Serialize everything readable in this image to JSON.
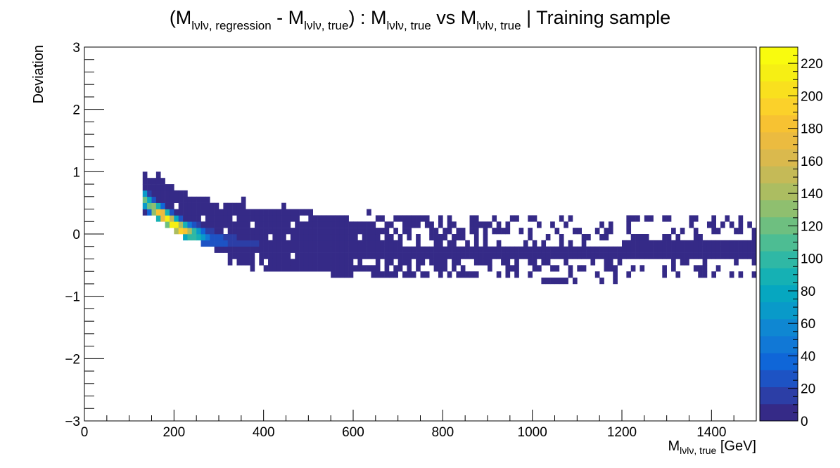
{
  "chart_data": {
    "type": "heatmap",
    "title": {
      "open": "(M",
      "sub1": "lνlν, regression",
      "mid1": " - M",
      "sub2": "lνlν, true",
      "mid2": ") : M",
      "sub3": "lνlν, true",
      "mid3": " vs M",
      "sub4": "lνlν, true",
      "end": " | Training sample"
    },
    "xlabel": {
      "main": "M",
      "sub": "lνlν, true",
      "unit": " [GeV]"
    },
    "ylabel": "Deviation",
    "xlim": [
      0,
      1500
    ],
    "ylim": [
      -3,
      3
    ],
    "x_ticks": [
      0,
      200,
      400,
      600,
      800,
      1000,
      1200,
      1400
    ],
    "x_tick_labels": [
      "0",
      "200",
      "400",
      "600",
      "800",
      "1000",
      "1200",
      "1400"
    ],
    "y_ticks": [
      -3,
      -2,
      -1,
      0,
      1,
      2,
      3
    ],
    "y_tick_labels": [
      "−3",
      "−2",
      "−1",
      "0",
      "1",
      "2",
      "3"
    ],
    "colorbar": {
      "range": [
        0,
        230
      ],
      "ticks": [
        0,
        20,
        40,
        60,
        80,
        100,
        120,
        140,
        160,
        180,
        200,
        220
      ],
      "tick_labels": [
        "0",
        "20",
        "40",
        "60",
        "80",
        "100",
        "120",
        "140",
        "160",
        "180",
        "200",
        "220"
      ],
      "palette": [
        "#352a87",
        "#2c3ea6",
        "#1d53c4",
        "#0f66d8",
        "#1178d6",
        "#0f87d2",
        "#099ac9",
        "#06a7c0",
        "#15b1b4",
        "#2fb8a5",
        "#4dbd93",
        "#6ebf80",
        "#8fbf6f",
        "#acbd61",
        "#c5ba57",
        "#dab94d",
        "#ebbb40",
        "#f7c232",
        "#fbd12a",
        "#f9e01e",
        "#f6ef14",
        "#f9fb0e"
      ]
    },
    "bins": {
      "x_width": 10,
      "y_width": 0.1
    },
    "density_model": {
      "ridge": [
        [
          130,
          0.55
        ],
        [
          150,
          0.4
        ],
        [
          170,
          0.3
        ],
        [
          190,
          0.18
        ],
        [
          210,
          0.08
        ],
        [
          240,
          0.0
        ],
        [
          280,
          -0.08
        ],
        [
          330,
          -0.14
        ],
        [
          400,
          -0.2
        ],
        [
          500,
          -0.24
        ],
        [
          600,
          -0.26
        ],
        [
          800,
          -0.28
        ],
        [
          1000,
          -0.28
        ],
        [
          1200,
          -0.27
        ],
        [
          1500,
          -0.25
        ]
      ],
      "peak": {
        "x": 190,
        "y": 0.15,
        "value": 225
      },
      "upper_edge": [
        [
          130,
          0.95
        ],
        [
          160,
          0.9
        ],
        [
          200,
          0.72
        ],
        [
          250,
          0.6
        ],
        [
          300,
          0.5
        ],
        [
          400,
          0.4
        ],
        [
          500,
          0.35
        ],
        [
          600,
          0.32
        ],
        [
          800,
          0.3
        ],
        [
          1000,
          0.3
        ],
        [
          1200,
          0.28
        ],
        [
          1500,
          0.28
        ]
      ],
      "lower_edge": [
        [
          150,
          0.3
        ],
        [
          170,
          0.15
        ],
        [
          200,
          0.0
        ],
        [
          250,
          -0.15
        ],
        [
          300,
          -0.3
        ],
        [
          320,
          -0.4
        ],
        [
          400,
          -0.55
        ],
        [
          500,
          -0.62
        ],
        [
          600,
          -0.68
        ],
        [
          800,
          -0.7
        ],
        [
          1000,
          -0.75
        ],
        [
          1200,
          -0.75
        ],
        [
          1500,
          -0.7
        ]
      ]
    }
  }
}
